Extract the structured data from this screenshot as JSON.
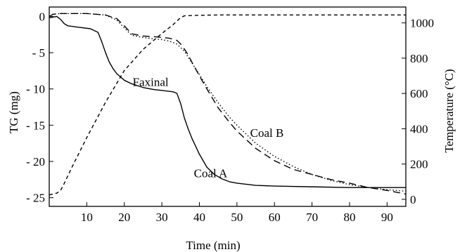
{
  "chart_data": {
    "type": "line",
    "xlabel": "Time (min)",
    "ylabel_left": "TG (mg)",
    "ylabel_right": "Temperature (°C)",
    "xlim": [
      0,
      95
    ],
    "ylim_left": [
      -26.2,
      1.3
    ],
    "ylim_right": [
      -40,
      1090
    ],
    "x_ticks": [
      10,
      20,
      30,
      40,
      50,
      60,
      70,
      80,
      90
    ],
    "y_left_ticks": [
      0,
      -5,
      -10,
      -15,
      -20,
      -25
    ],
    "y_left_tick_labels": [
      "0",
      "- 5",
      "- 10",
      "- 15",
      "- 20",
      "- 25"
    ],
    "y_right_ticks": [
      0,
      200,
      400,
      600,
      800,
      1000
    ],
    "grid": false,
    "legend": "none",
    "annotations": [
      {
        "text": "Faxinal",
        "x": 27,
        "y": -9.6
      },
      {
        "text": "Coal B",
        "x": 58,
        "y": -16.6
      },
      {
        "text": "Coal A",
        "x": 43,
        "y": -22.2
      }
    ],
    "series": [
      {
        "name": "Coal A",
        "axis": "left",
        "style": "solid",
        "x": [
          0,
          2,
          3,
          4,
          5,
          8,
          11,
          13,
          14,
          15,
          16,
          17,
          18,
          20,
          22,
          25,
          28,
          30,
          33,
          34,
          35,
          36,
          37,
          38,
          40,
          42,
          44,
          46,
          48,
          50,
          55,
          60,
          70,
          80,
          90,
          95
        ],
        "y": [
          -0.2,
          0.0,
          -0.4,
          -1.0,
          -1.3,
          -1.5,
          -1.7,
          -2.2,
          -3.5,
          -5.0,
          -6.3,
          -7.2,
          -7.9,
          -8.8,
          -9.3,
          -9.8,
          -10.1,
          -10.2,
          -10.4,
          -10.6,
          -12.0,
          -14.0,
          -15.5,
          -16.8,
          -19.0,
          -20.8,
          -21.8,
          -22.4,
          -22.8,
          -23.0,
          -23.3,
          -23.4,
          -23.5,
          -23.6,
          -23.6,
          -23.6
        ]
      },
      {
        "name": "Faxinal",
        "axis": "left",
        "style": "dashed",
        "x": [
          0,
          1,
          3,
          5,
          10,
          15,
          18,
          20,
          22,
          25,
          28,
          30,
          32,
          34,
          35,
          36,
          37,
          38,
          40,
          42,
          45,
          48,
          50,
          55,
          60,
          65,
          70,
          75,
          80,
          85,
          90,
          95
        ],
        "y": [
          0.0,
          0.3,
          0.4,
          0.4,
          0.4,
          0.2,
          -0.3,
          -1.3,
          -2.4,
          -2.7,
          -2.8,
          -2.9,
          -3.0,
          -3.3,
          -3.8,
          -4.5,
          -5.3,
          -6.3,
          -8.2,
          -10.0,
          -12.6,
          -14.6,
          -15.8,
          -18.2,
          -19.9,
          -21.1,
          -21.8,
          -22.5,
          -23.0,
          -23.6,
          -24.0,
          -24.5
        ]
      },
      {
        "name": "Coal B",
        "axis": "left",
        "style": "dotted",
        "x": [
          0,
          1,
          3,
          5,
          10,
          15,
          18,
          20,
          22,
          25,
          28,
          30,
          32,
          34,
          35,
          36,
          38,
          40,
          42,
          45,
          48,
          50,
          55,
          60,
          65,
          70,
          75,
          80,
          85,
          90,
          95
        ],
        "y": [
          0.0,
          0.3,
          0.4,
          0.4,
          0.4,
          0.2,
          -0.5,
          -1.6,
          -2.6,
          -2.9,
          -3.1,
          -3.2,
          -3.4,
          -3.8,
          -4.3,
          -4.8,
          -6.4,
          -8.0,
          -9.7,
          -11.9,
          -13.9,
          -15.0,
          -17.5,
          -19.3,
          -20.7,
          -21.8,
          -22.6,
          -23.2,
          -23.6,
          -23.9,
          -24.1
        ]
      },
      {
        "name": "Temperature",
        "axis": "right",
        "style": "short-dashed",
        "x": [
          0,
          2,
          3,
          4,
          6,
          10,
          15,
          20,
          25,
          30,
          33,
          35,
          36,
          38,
          40,
          45,
          50,
          60,
          70,
          80,
          90,
          95
        ],
        "y": [
          25,
          35,
          50,
          90,
          180,
          350,
          550,
          730,
          850,
          940,
          990,
          1030,
          1040,
          1042,
          1043,
          1045,
          1045,
          1045,
          1045,
          1045,
          1045,
          1045
        ]
      }
    ]
  }
}
